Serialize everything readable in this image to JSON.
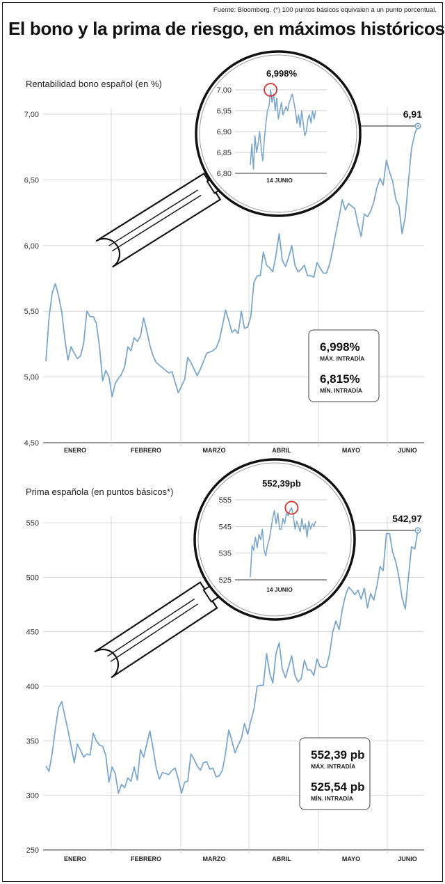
{
  "header": {
    "source": "Fuente: Bloomberg. (*) 100 puntos básicos equivalen a un punto porcentual.",
    "title": "El bono y la prima de riesgo, en máximos históricos"
  },
  "colors": {
    "line": "#7ba7cc",
    "grid": "#cfcfcf",
    "highlight": "#d9302c",
    "text": "#111111"
  },
  "chart_data": [
    {
      "type": "line",
      "title": "Rentabilidad bono español (en %)",
      "xlabel": "",
      "ylabel": "",
      "ylim": [
        4.5,
        7.0
      ],
      "yticks": [
        "7,00",
        "6,50",
        "6,00",
        "5,50",
        "5,00",
        "4,50"
      ],
      "months": [
        "ENERO",
        "FEBRERO",
        "MARZO",
        "ABRIL",
        "MAYO",
        "JUNIO"
      ],
      "last_value_label": "6,91",
      "series": [
        {
          "values": [
            5.12,
            5.45,
            5.64,
            5.71,
            5.62,
            5.5,
            5.29,
            5.13,
            5.23,
            5.18,
            5.14,
            5.16,
            5.26,
            5.5,
            5.46,
            5.46,
            5.41,
            5.23,
            4.97,
            5.05,
            5.0,
            4.85,
            4.95,
            4.99,
            5.02,
            5.08,
            5.23,
            5.2,
            5.3,
            5.27,
            5.31,
            5.45,
            5.35,
            5.24,
            5.16,
            5.11,
            5.09,
            5.07,
            5.05,
            5.03,
            5.04,
            4.96,
            4.88,
            4.93,
            4.98,
            5.15,
            5.11,
            5.06,
            5.01,
            5.06,
            5.12,
            5.18,
            5.19,
            5.2,
            5.22,
            5.28,
            5.39,
            5.51,
            5.43,
            5.34,
            5.36,
            5.33,
            5.5,
            5.37,
            5.38,
            5.46,
            5.72,
            5.77,
            5.77,
            5.95,
            5.85,
            5.83,
            5.8,
            5.93,
            6.09,
            5.89,
            5.84,
            5.91,
            6.0,
            5.85,
            5.8,
            5.82,
            5.85,
            5.77,
            5.77,
            5.76,
            5.87,
            5.83,
            5.79,
            5.79,
            5.86,
            5.97,
            6.1,
            6.22,
            6.35,
            6.27,
            6.32,
            6.3,
            6.28,
            6.16,
            6.07,
            6.24,
            6.22,
            6.26,
            6.33,
            6.44,
            6.51,
            6.46,
            6.65,
            6.56,
            6.49,
            6.35,
            6.3,
            6.09,
            6.22,
            6.49,
            6.74,
            6.85,
            6.91
          ]
        }
      ],
      "zoom": {
        "title": "6,998%",
        "date": "14 JUNIO",
        "ylim": [
          6.8,
          7.0
        ],
        "yticks": [
          "7,00",
          "6,95",
          "6,90",
          "6,85",
          "6,80"
        ],
        "values": [
          6.82,
          6.87,
          6.81,
          6.89,
          6.85,
          6.87,
          6.9,
          6.86,
          6.83,
          6.88,
          6.92,
          6.95,
          6.96,
          7.0,
          6.97,
          6.99,
          6.95,
          6.98,
          6.93,
          6.95,
          6.97,
          6.94,
          6.95,
          6.96,
          6.95,
          6.97,
          6.98,
          6.99,
          6.97,
          6.95,
          6.92,
          6.94,
          6.91,
          6.95,
          6.92,
          6.89,
          6.9,
          6.93,
          6.94,
          6.92,
          6.95,
          6.93,
          6.95
        ],
        "max_index": 13
      },
      "stats": {
        "max_value": "6,998%",
        "max_label": "MÁX. INTRADÍA",
        "min_value": "6,815%",
        "min_label": "MÍN. INTRADÍA"
      }
    },
    {
      "type": "line",
      "title": "Prima española (en puntos básicos*)",
      "xlabel": "",
      "ylabel": "",
      "ylim": [
        250,
        550
      ],
      "yticks": [
        "550",
        "500",
        "450",
        "400",
        "350",
        "300",
        "250"
      ],
      "months": [
        "ENERO",
        "FEBRERO",
        "MARZO",
        "ABRIL",
        "MAYO",
        "JUNIO"
      ],
      "last_value_label": "542,97",
      "series": [
        {
          "values": [
            327,
            322,
            339,
            361,
            380,
            386,
            373,
            360,
            345,
            330,
            347,
            341,
            335,
            338,
            337,
            357,
            350,
            346,
            345,
            337,
            312,
            326,
            320,
            302,
            310,
            307,
            316,
            313,
            326,
            314,
            342,
            335,
            347,
            359,
            343,
            325,
            315,
            321,
            320,
            319,
            323,
            325,
            315,
            302,
            312,
            313,
            338,
            333,
            327,
            323,
            330,
            331,
            324,
            325,
            317,
            318,
            323,
            339,
            360,
            350,
            339,
            346,
            352,
            366,
            356,
            368,
            379,
            400,
            401,
            401,
            430,
            412,
            403,
            430,
            440,
            416,
            408,
            418,
            428,
            410,
            404,
            407,
            424,
            415,
            415,
            410,
            425,
            418,
            417,
            418,
            430,
            450,
            460,
            452,
            470,
            483,
            491,
            488,
            484,
            488,
            480,
            490,
            472,
            485,
            479,
            492,
            510,
            506,
            540,
            540,
            523,
            514,
            500,
            481,
            471,
            500,
            528,
            526,
            543
          ]
        }
      ],
      "zoom": {
        "title": "552,39pb",
        "date": "14 JUNIO",
        "ylim": [
          525,
          555
        ],
        "yticks": [
          "555",
          "545",
          "535",
          "525"
        ],
        "values": [
          526,
          538,
          536,
          541,
          537,
          542,
          540,
          544,
          536,
          534,
          538,
          540,
          544,
          548,
          551,
          546,
          550,
          544,
          544,
          548,
          546,
          550,
          549,
          551,
          552,
          549,
          544,
          547,
          545,
          543,
          548,
          544,
          546,
          541,
          547,
          544,
          546,
          545,
          547
        ],
        "max_index": 24
      },
      "stats": {
        "max_value": "552,39 pb",
        "max_label": "MÁX. INTRADÍA",
        "min_value": "525,54 pb",
        "min_label": "MÍN. INTRADÍA"
      }
    }
  ]
}
